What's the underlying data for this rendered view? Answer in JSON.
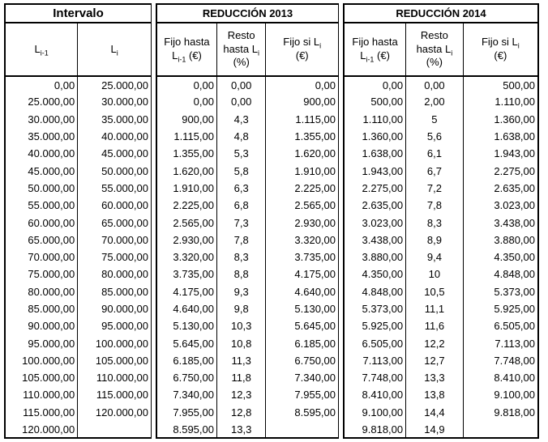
{
  "table": {
    "groups": {
      "intervalo": {
        "title": "Intervalo",
        "columns": [
          {
            "label": [
              {
                "t": "L"
              },
              {
                "s": "i-1"
              }
            ]
          },
          {
            "label": [
              {
                "t": "L"
              },
              {
                "s": "i"
              }
            ]
          }
        ]
      },
      "reduccion_2013": {
        "title": "REDUCCIÓN 2013",
        "columns": [
          {
            "label": [
              {
                "t": "Fijo hasta"
              },
              {
                "br": true
              },
              {
                "t": "L"
              },
              {
                "s": "i-1"
              },
              {
                "t": " (€)"
              }
            ]
          },
          {
            "label": [
              {
                "t": "Resto"
              },
              {
                "br": true
              },
              {
                "t": "hasta L"
              },
              {
                "s": "i"
              },
              {
                "br": true
              },
              {
                "t": "(%)"
              }
            ]
          },
          {
            "label": [
              {
                "t": "Fijo si L"
              },
              {
                "s": "i"
              },
              {
                "br": true
              },
              {
                "t": "(€)"
              }
            ]
          }
        ]
      },
      "reduccion_2014": {
        "title": "REDUCCIÓN 2014",
        "columns": [
          {
            "label": [
              {
                "t": "Fijo hasta"
              },
              {
                "br": true
              },
              {
                "t": "L"
              },
              {
                "s": "i-1"
              },
              {
                "t": " (€)"
              }
            ]
          },
          {
            "label": [
              {
                "t": "Resto"
              },
              {
                "br": true
              },
              {
                "t": "hasta L"
              },
              {
                "s": "i"
              },
              {
                "br": true
              },
              {
                "t": "(%)"
              }
            ]
          },
          {
            "label": [
              {
                "t": "Fijo si L"
              },
              {
                "s": "i"
              },
              {
                "br": true
              },
              {
                "t": "(€)"
              }
            ]
          }
        ]
      }
    },
    "rows": [
      [
        "0,00",
        "25.000,00",
        "0,00",
        "0,00",
        "0,00",
        "0,00",
        "0,00",
        "500,00"
      ],
      [
        "25.000,00",
        "30.000,00",
        "0,00",
        "0,00",
        "900,00",
        "500,00",
        "2,00",
        "1.110,00"
      ],
      [
        "30.000,00",
        "35.000,00",
        "900,00",
        "4,3",
        "1.115,00",
        "1.110,00",
        "5",
        "1.360,00"
      ],
      [
        "35.000,00",
        "40.000,00",
        "1.115,00",
        "4,8",
        "1.355,00",
        "1.360,00",
        "5,6",
        "1.638,00"
      ],
      [
        "40.000,00",
        "45.000,00",
        "1.355,00",
        "5,3",
        "1.620,00",
        "1.638,00",
        "6,1",
        "1.943,00"
      ],
      [
        "45.000,00",
        "50.000,00",
        "1.620,00",
        "5,8",
        "1.910,00",
        "1.943,00",
        "6,7",
        "2.275,00"
      ],
      [
        "50.000,00",
        "55.000,00",
        "1.910,00",
        "6,3",
        "2.225,00",
        "2.275,00",
        "7,2",
        "2.635,00"
      ],
      [
        "55.000,00",
        "60.000,00",
        "2.225,00",
        "6,8",
        "2.565,00",
        "2.635,00",
        "7,8",
        "3.023,00"
      ],
      [
        "60.000,00",
        "65.000,00",
        "2.565,00",
        "7,3",
        "2.930,00",
        "3.023,00",
        "8,3",
        "3.438,00"
      ],
      [
        "65.000,00",
        "70.000,00",
        "2.930,00",
        "7,8",
        "3.320,00",
        "3.438,00",
        "8,9",
        "3.880,00"
      ],
      [
        "70.000,00",
        "75.000,00",
        "3.320,00",
        "8,3",
        "3.735,00",
        "3.880,00",
        "9,4",
        "4.350,00"
      ],
      [
        "75.000,00",
        "80.000,00",
        "3.735,00",
        "8,8",
        "4.175,00",
        "4.350,00",
        "10",
        "4.848,00"
      ],
      [
        "80.000,00",
        "85.000,00",
        "4.175,00",
        "9,3",
        "4.640,00",
        "4.848,00",
        "10,5",
        "5.373,00"
      ],
      [
        "85.000,00",
        "90.000,00",
        "4.640,00",
        "9,8",
        "5.130,00",
        "5.373,00",
        "11,1",
        "5.925,00"
      ],
      [
        "90.000,00",
        "95.000,00",
        "5.130,00",
        "10,3",
        "5.645,00",
        "5.925,00",
        "11,6",
        "6.505,00"
      ],
      [
        "95.000,00",
        "100.000,00",
        "5.645,00",
        "10,8",
        "6.185,00",
        "6.505,00",
        "12,2",
        "7.113,00"
      ],
      [
        "100.000,00",
        "105.000,00",
        "6.185,00",
        "11,3",
        "6.750,00",
        "7.113,00",
        "12,7",
        "7.748,00"
      ],
      [
        "105.000,00",
        "110.000,00",
        "6.750,00",
        "11,8",
        "7.340,00",
        "7.748,00",
        "13,3",
        "8.410,00"
      ],
      [
        "110.000,00",
        "115.000,00",
        "7.340,00",
        "12,3",
        "7.955,00",
        "8.410,00",
        "13,8",
        "9.100,00"
      ],
      [
        "115.000,00",
        "120.000,00",
        "7.955,00",
        "12,8",
        "8.595,00",
        "9.100,00",
        "14,4",
        "9.818,00"
      ],
      [
        "120.000,00",
        "",
        "8.595,00",
        "13,3",
        "",
        "9.818,00",
        "14,9",
        ""
      ]
    ]
  }
}
